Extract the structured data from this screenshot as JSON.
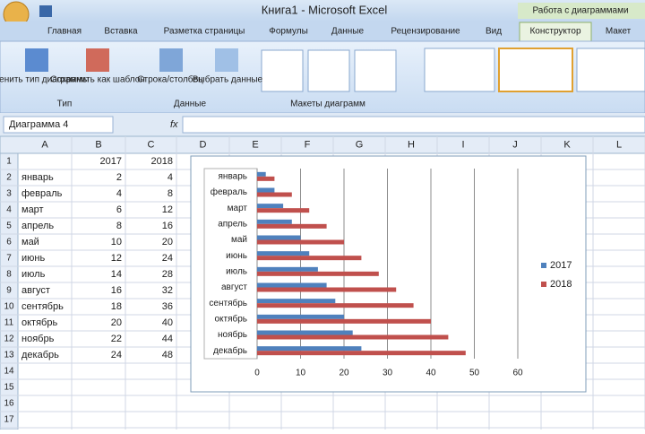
{
  "window": {
    "title": "Книга1 - Microsoft Excel",
    "context_tab": "Работа с диаграммами"
  },
  "tabs": [
    "Главная",
    "Вставка",
    "Разметка страницы",
    "Формулы",
    "Данные",
    "Рецензирование",
    "Вид",
    "Конструктор",
    "Макет"
  ],
  "ribbon": {
    "type_group": {
      "label": "Тип",
      "buttons": [
        "Изменить тип диаграммы",
        "Сохранить как шаблон"
      ]
    },
    "data_group": {
      "label": "Данные",
      "buttons": [
        "Строка/столбец",
        "Выбрать данные"
      ]
    },
    "layouts_group": {
      "label": "Макеты диаграмм"
    }
  },
  "formula_bar": {
    "name_box": "Диаграмма 4",
    "fx": "fx"
  },
  "sheet": {
    "columns": [
      "A",
      "B",
      "C",
      "D",
      "E",
      "F",
      "G",
      "H",
      "I",
      "J",
      "K",
      "L"
    ],
    "row_numbers": [
      1,
      2,
      3,
      4,
      5,
      6,
      7,
      8,
      9,
      10,
      11,
      12,
      13,
      14,
      15,
      16,
      17
    ],
    "header": [
      2017,
      2018
    ],
    "rows": [
      [
        "январь",
        2,
        4
      ],
      [
        "февраль",
        4,
        8
      ],
      [
        "март",
        6,
        12
      ],
      [
        "апрель",
        8,
        16
      ],
      [
        "май",
        10,
        20
      ],
      [
        "июнь",
        12,
        24
      ],
      [
        "июль",
        14,
        28
      ],
      [
        "август",
        16,
        32
      ],
      [
        "сентябрь",
        18,
        36
      ],
      [
        "октябрь",
        20,
        40
      ],
      [
        "ноябрь",
        22,
        44
      ],
      [
        "декабрь",
        24,
        48
      ]
    ]
  },
  "chart_data": {
    "type": "hbar",
    "categories": [
      "январь",
      "февраль",
      "март",
      "апрель",
      "май",
      "июнь",
      "июль",
      "август",
      "сентябрь",
      "октябрь",
      "ноябрь",
      "декабрь"
    ],
    "series": [
      {
        "name": "2017",
        "color": "#4f81bd",
        "values": [
          2,
          4,
          6,
          8,
          10,
          12,
          14,
          16,
          18,
          20,
          22,
          24
        ]
      },
      {
        "name": "2018",
        "color": "#c0504d",
        "values": [
          4,
          8,
          12,
          16,
          20,
          24,
          28,
          32,
          36,
          40,
          44,
          48
        ]
      }
    ],
    "xlim": [
      0,
      60
    ],
    "xticks": [
      0,
      10,
      20,
      30,
      40,
      50,
      60
    ],
    "grid": true,
    "legend": "right"
  }
}
